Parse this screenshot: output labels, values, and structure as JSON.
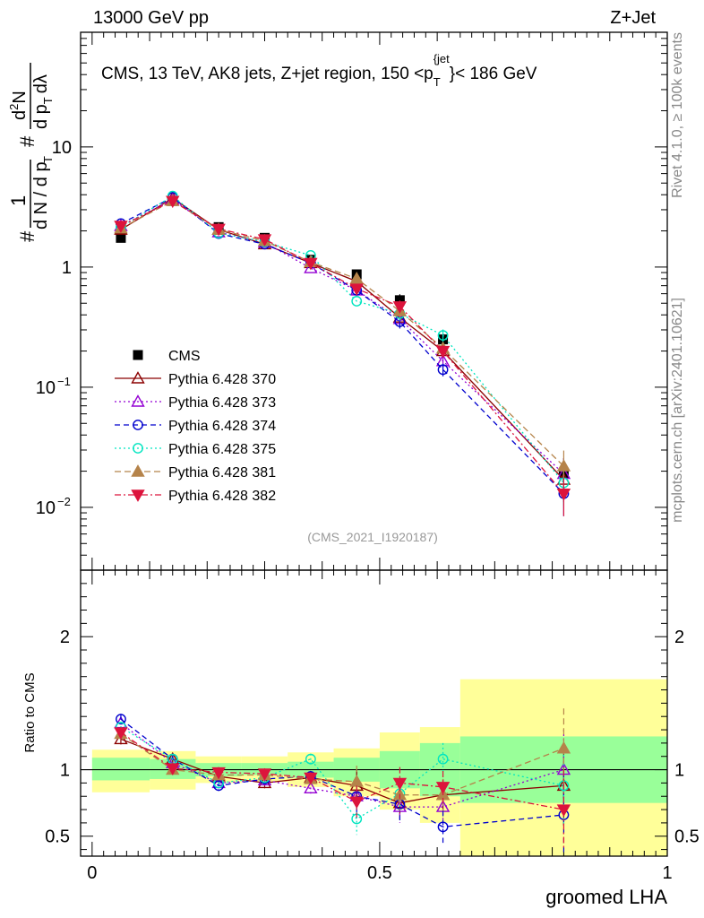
{
  "header": {
    "left": "13000 GeV pp",
    "right": "Z+Jet"
  },
  "side": {
    "top": "Rivet 4.1.0, ≥ 100k events",
    "bottom": "mcplots.cern.ch [arXiv:2401.10621]"
  },
  "analysis_id": "(CMS_2021_I1920187)",
  "colors": {
    "cms": "#000000",
    "s370": "#8b0000",
    "s373": "#9400d3",
    "s374": "#0000cd",
    "s375": "#00e5c0",
    "s381": "#b5834a",
    "s382": "#dc143c",
    "band_inner": "#99ff99",
    "band_outer": "#ffff99"
  },
  "chart_data": [
    {
      "type": "scatter",
      "panel": "main",
      "title": "CMS, 13 TeV, AK8 jets, Z+jet region, 150 <p_T^{jet}< 186 GeV",
      "title_parts": {
        "prefix": "CMS, 13 TeV, AK8 jets, Z+jet region, 150 <p",
        "sub": "T",
        "sup": "{jet",
        "suffix": "}< 186 GeV"
      },
      "ylabel": "#  1/(dN/dp_T) # d²N/(dp_T dλ)",
      "ylabel_parts": {
        "hash": "#",
        "one": "1",
        "dn": "d N / d p",
        "T": "T",
        "d2n": "d",
        "two": "2",
        "N": "N",
        "dpt": "d p",
        "dlam": "dλ"
      },
      "yscale": "log",
      "ylim": [
        0.003,
        90
      ],
      "xlim": [
        -0.02,
        1.0
      ],
      "yticks": [
        {
          "v": 0.01,
          "base": "10",
          "exp": "−2"
        },
        {
          "v": 0.1,
          "base": "10",
          "exp": "−1"
        },
        {
          "v": 1,
          "label": "1"
        },
        {
          "v": 10,
          "label": "10"
        }
      ],
      "x": [
        0.05,
        0.14,
        0.22,
        0.3,
        0.38,
        0.46,
        0.535,
        0.61,
        0.82
      ],
      "series": [
        {
          "name": "CMS",
          "key": "cms",
          "values": [
            1.75,
            3.55,
            2.15,
            1.75,
            1.15,
            0.87,
            0.53,
            0.25,
            0.019
          ]
        },
        {
          "name": "Pythia 6.428 370",
          "key": "s370",
          "values": [
            2.05,
            3.75,
            2.05,
            1.55,
            1.08,
            0.76,
            0.38,
            0.2,
            0.017
          ]
        },
        {
          "name": "Pythia 6.428 373",
          "key": "s373",
          "values": [
            2.2,
            3.65,
            1.95,
            1.6,
            0.98,
            0.64,
            0.37,
            0.165,
            0.019
          ]
        },
        {
          "name": "Pythia 6.428 374",
          "key": "s374",
          "values": [
            2.3,
            3.8,
            1.9,
            1.55,
            1.08,
            0.64,
            0.35,
            0.14,
            0.013
          ]
        },
        {
          "name": "Pythia 6.428 375",
          "key": "s375",
          "values": [
            2.15,
            3.9,
            1.92,
            1.62,
            1.25,
            0.52,
            0.41,
            0.27,
            0.016
          ]
        },
        {
          "name": "Pythia 6.428 381",
          "key": "s381",
          "values": [
            2.1,
            3.55,
            2.05,
            1.65,
            1.1,
            0.8,
            0.43,
            0.21,
            0.022
          ]
        },
        {
          "name": "Pythia 6.428 382",
          "key": "s382",
          "values": [
            2.2,
            3.55,
            2.08,
            1.7,
            1.08,
            0.66,
            0.47,
            0.2,
            0.013
          ]
        }
      ]
    },
    {
      "type": "scatter",
      "panel": "ratio",
      "ylabel": "Ratio to CMS",
      "xlabel": "groomed LHA",
      "ylim": [
        0.35,
        2.5
      ],
      "xlim": [
        -0.02,
        1.0
      ],
      "yticks": [
        {
          "v": 0.5,
          "label": "0.5"
        },
        {
          "v": 1,
          "label": "1"
        },
        {
          "v": 2,
          "label": "2"
        }
      ],
      "xticks": [
        {
          "v": 0,
          "label": "0"
        },
        {
          "v": 0.5,
          "label": "0.5"
        },
        {
          "v": 1,
          "label": "1"
        }
      ],
      "bands": [
        {
          "x0": 0.0,
          "x1": 0.1,
          "inner": [
            0.92,
            1.09
          ],
          "outer": [
            0.83,
            1.15
          ]
        },
        {
          "x0": 0.1,
          "x1": 0.18,
          "inner": [
            0.93,
            1.08
          ],
          "outer": [
            0.85,
            1.14
          ]
        },
        {
          "x0": 0.18,
          "x1": 0.26,
          "inner": [
            0.95,
            1.05
          ],
          "outer": [
            0.9,
            1.1
          ]
        },
        {
          "x0": 0.26,
          "x1": 0.34,
          "inner": [
            0.96,
            1.05
          ],
          "outer": [
            0.91,
            1.1
          ]
        },
        {
          "x0": 0.34,
          "x1": 0.42,
          "inner": [
            0.94,
            1.06
          ],
          "outer": [
            0.87,
            1.13
          ]
        },
        {
          "x0": 0.42,
          "x1": 0.5,
          "inner": [
            0.91,
            1.09
          ],
          "outer": [
            0.8,
            1.16
          ]
        },
        {
          "x0": 0.5,
          "x1": 0.57,
          "inner": [
            0.86,
            1.14
          ],
          "outer": [
            0.7,
            1.28
          ]
        },
        {
          "x0": 0.57,
          "x1": 0.64,
          "inner": [
            0.8,
            1.2
          ],
          "outer": [
            0.6,
            1.32
          ]
        },
        {
          "x0": 0.64,
          "x1": 1.0,
          "inner": [
            0.75,
            1.25
          ],
          "outer": [
            0.35,
            1.68
          ]
        }
      ],
      "x": [
        0.05,
        0.14,
        0.22,
        0.3,
        0.38,
        0.46,
        0.535,
        0.61,
        0.82
      ],
      "series": [
        {
          "name": "Pythia 6.428 370",
          "key": "s370",
          "values": [
            1.23,
            1.08,
            0.95,
            0.9,
            0.94,
            0.88,
            0.75,
            0.81,
            0.88
          ]
        },
        {
          "name": "Pythia 6.428 373",
          "key": "s373",
          "values": [
            1.35,
            1.05,
            0.9,
            0.92,
            0.86,
            0.8,
            0.72,
            0.72,
            1.0
          ]
        },
        {
          "name": "Pythia 6.428 374",
          "key": "s374",
          "values": [
            1.38,
            1.08,
            0.88,
            0.93,
            0.95,
            0.8,
            0.74,
            0.57,
            0.66
          ]
        },
        {
          "name": "Pythia 6.428 375",
          "key": "s375",
          "values": [
            1.32,
            1.08,
            0.9,
            0.94,
            1.08,
            0.63,
            0.82,
            1.08,
            0.88
          ]
        },
        {
          "name": "Pythia 6.428 381",
          "key": "s381",
          "values": [
            1.27,
            1.0,
            0.96,
            0.96,
            0.93,
            0.91,
            0.81,
            0.81,
            1.16
          ]
        },
        {
          "name": "Pythia 6.428 382",
          "key": "s382",
          "values": [
            1.28,
            1.01,
            0.98,
            0.97,
            0.94,
            0.76,
            0.9,
            0.87,
            0.7
          ]
        }
      ]
    }
  ]
}
